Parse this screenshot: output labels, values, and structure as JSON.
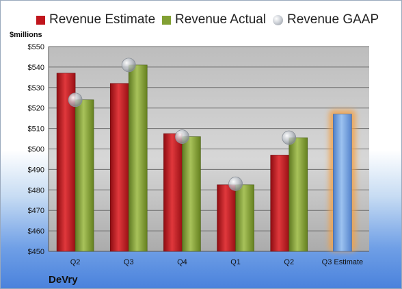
{
  "chart_data": {
    "type": "bar",
    "categories": [
      "Q2",
      "Q3",
      "Q4",
      "Q1",
      "Q2",
      "Q3 Estimate"
    ],
    "series": [
      {
        "name": "Revenue Estimate",
        "values": [
          537,
          532,
          507.5,
          482.5,
          497,
          517
        ],
        "color": "#c0151c"
      },
      {
        "name": "Revenue Actual",
        "values": [
          524,
          541,
          506,
          482.5,
          505.5,
          null
        ],
        "color": "#82a034"
      },
      {
        "name": "Revenue GAAP",
        "values": [
          524,
          541,
          506,
          483,
          505.5,
          null
        ],
        "color": "#b9bec6"
      }
    ],
    "highlight": {
      "category_index": 5,
      "bar_color": "#6fa0de",
      "glow_color": "#f2a24a"
    },
    "ylabel": "$millions",
    "ylim": [
      450,
      550
    ],
    "yticks": [
      "$450",
      "$460",
      "$470",
      "$480",
      "$490",
      "$500",
      "$510",
      "$520",
      "$530",
      "$540",
      "$550"
    ],
    "ytick_values": [
      450,
      460,
      470,
      480,
      490,
      500,
      510,
      520,
      530,
      540,
      550
    ],
    "grid": true,
    "legend_position": "top",
    "brand": "DeVry"
  }
}
